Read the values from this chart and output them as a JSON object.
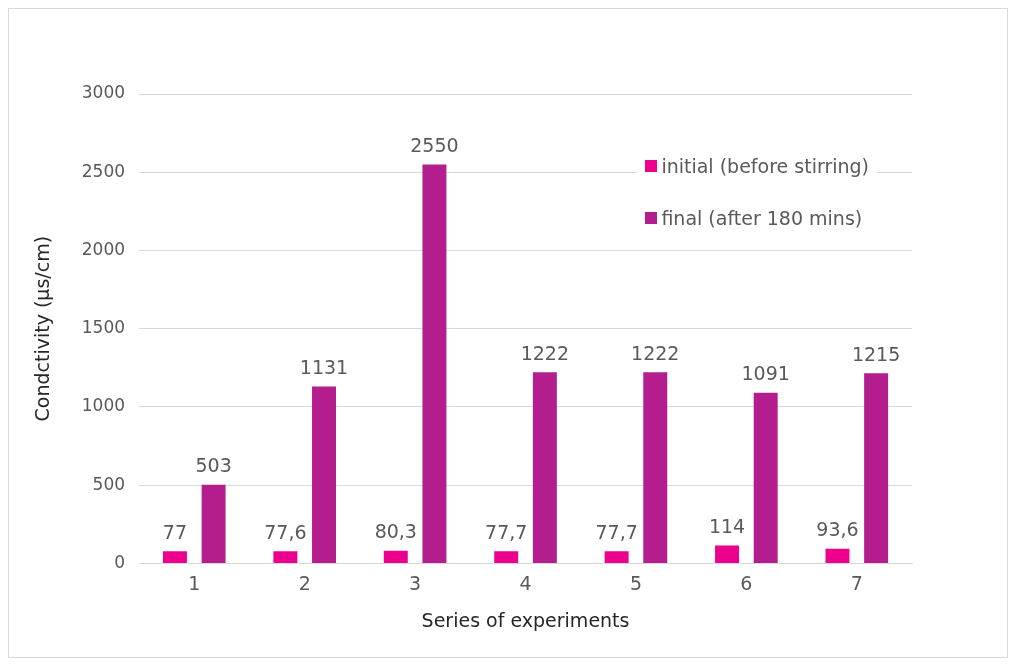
{
  "chart_data": {
    "type": "bar",
    "xlabel": "Series of experiments",
    "ylabel": "Condctivity (µs/cm)",
    "categories": [
      "1",
      "2",
      "3",
      "4",
      "5",
      "6",
      "7"
    ],
    "series": [
      {
        "name": "initial (before stirring)",
        "color": "#ec008c",
        "values": [
          77,
          77.6,
          80.3,
          77.7,
          77.7,
          114,
          93.6
        ],
        "value_labels": [
          "77",
          "77,6",
          "80,3",
          "77,7",
          "77,7",
          "114",
          "93,6"
        ]
      },
      {
        "name": "final (after 180 mins)",
        "color": "#b41d8e",
        "values": [
          503,
          1131,
          2550,
          1222,
          1222,
          1091,
          1215
        ],
        "value_labels": [
          "503",
          "1131",
          "2550",
          "1222",
          "1222",
          "1091",
          "1215"
        ]
      }
    ],
    "ylim": [
      0,
      3000
    ],
    "yticks": [
      0,
      500,
      1000,
      1500,
      2000,
      2500,
      3000
    ],
    "grid": "y",
    "legend": "top right"
  }
}
